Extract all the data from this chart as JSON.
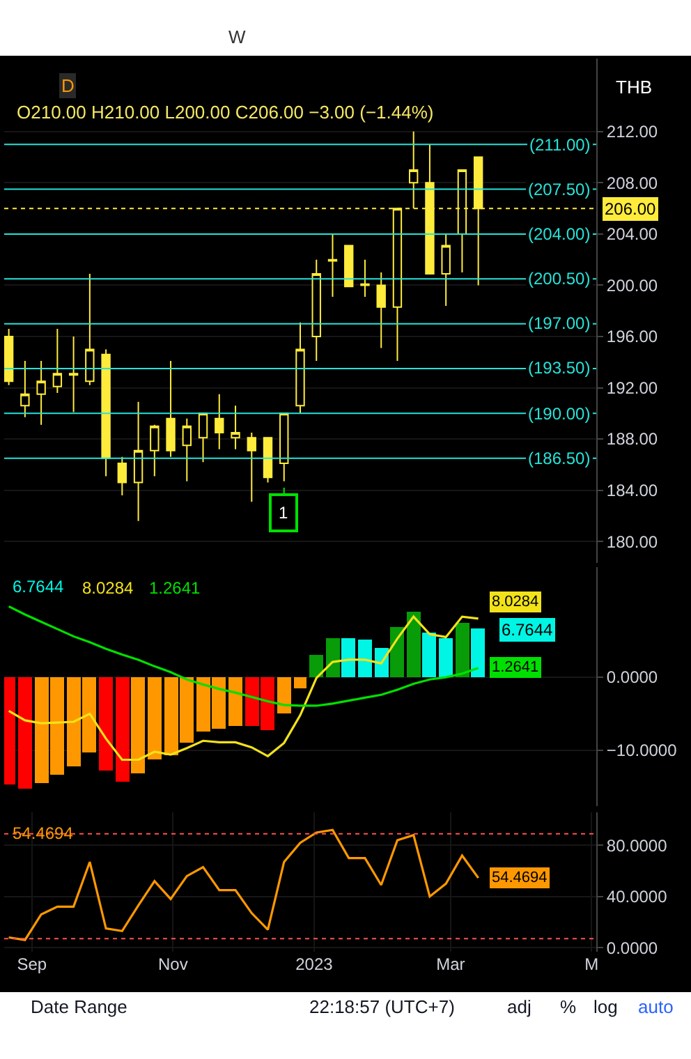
{
  "chart_data": [
    {
      "type": "candlestick",
      "color": "#ffeb3b",
      "x": [
        "2022-08-22",
        "2022-08-29",
        "2022-09-05",
        "2022-09-12",
        "2022-09-19",
        "2022-09-26",
        "2022-10-03",
        "2022-10-10",
        "2022-10-17",
        "2022-10-24",
        "2022-10-31",
        "2022-11-07",
        "2022-11-14",
        "2022-11-21",
        "2022-11-28",
        "2022-12-05",
        "2022-12-12",
        "2022-12-19",
        "2022-12-26",
        "2023-01-02",
        "2023-01-09",
        "2023-01-16",
        "2023-01-23",
        "2023-01-30",
        "2023-02-06",
        "2023-02-13",
        "2023-02-20",
        "2023-02-27",
        "2023-03-06",
        "2023-03-13"
      ],
      "ohlc": [
        [
          196.0,
          196.6,
          192.2,
          192.5
        ],
        [
          190.6,
          194.1,
          189.7,
          191.5
        ],
        [
          191.5,
          194.1,
          189.1,
          192.5
        ],
        [
          192.1,
          196.6,
          191.6,
          193.1
        ],
        [
          193.0,
          196.0,
          190.1,
          193.1
        ],
        [
          192.5,
          200.9,
          192.2,
          195.0
        ],
        [
          194.6,
          195.0,
          185.1,
          186.5
        ],
        [
          186.1,
          186.6,
          183.6,
          184.6
        ],
        [
          184.6,
          190.9,
          181.6,
          187.1
        ],
        [
          187.1,
          189.1,
          185.1,
          189.0
        ],
        [
          189.6,
          194.1,
          186.6,
          187.1
        ],
        [
          187.5,
          189.6,
          184.7,
          189.0
        ],
        [
          188.1,
          190.0,
          186.2,
          190.0
        ],
        [
          189.6,
          191.5,
          187.2,
          188.5
        ],
        [
          188.1,
          190.6,
          187.2,
          188.5
        ],
        [
          188.1,
          188.5,
          183.1,
          187.1
        ],
        [
          188.1,
          188.1,
          184.6,
          185.0
        ],
        [
          186.1,
          190.0,
          184.7,
          190.0
        ],
        [
          190.6,
          197.1,
          190.0,
          195.0
        ],
        [
          196.0,
          202.0,
          194.1,
          200.9
        ],
        [
          201.9,
          204.0,
          199.1,
          202.0
        ],
        [
          203.1,
          203.1,
          199.9,
          199.9
        ],
        [
          200.1,
          202.0,
          199.1,
          200.0
        ],
        [
          200.0,
          201.0,
          195.1,
          198.3
        ],
        [
          198.3,
          206.0,
          194.1,
          206.0
        ],
        [
          208.0,
          212.0,
          206.0,
          209.0
        ],
        [
          208.0,
          211.0,
          200.9,
          200.9
        ],
        [
          200.9,
          204.0,
          198.4,
          203.1
        ],
        [
          204.0,
          209.0,
          201.0,
          209.0
        ],
        [
          210.0,
          210.0,
          200.0,
          206.0
        ]
      ],
      "xlim": [
        "2022-08-20",
        "2023-05-03"
      ],
      "ylim": [
        178.3,
        217.7
      ],
      "yticks": [
        {
          "value": 180,
          "label": "180.00"
        },
        {
          "value": 184,
          "label": "184.00"
        },
        {
          "value": 188,
          "label": "188.00"
        },
        {
          "value": 192,
          "label": "192.00"
        },
        {
          "value": 196,
          "label": "196.00"
        },
        {
          "value": 200,
          "label": "200.00"
        },
        {
          "value": 204,
          "label": "204.00"
        },
        {
          "value": 208,
          "label": "208.00"
        },
        {
          "value": 212,
          "label": "212.00"
        }
      ],
      "ref_lines": [
        {
          "axis": "y",
          "value": 211,
          "label": "(211.00)",
          "color": "#26e3d9"
        },
        {
          "axis": "y",
          "value": 207.5,
          "label": "(207.50)",
          "color": "#26e3d9"
        },
        {
          "axis": "y",
          "value": 204,
          "label": "(204.00)",
          "color": "#26e3d9"
        },
        {
          "axis": "y",
          "value": 200.5,
          "label": "(200.50)",
          "color": "#26e3d9"
        },
        {
          "axis": "y",
          "value": 197,
          "label": "(197.00)",
          "color": "#26e3d9"
        },
        {
          "axis": "y",
          "value": 193.5,
          "label": "(193.50)",
          "color": "#26e3d9"
        },
        {
          "axis": "y",
          "value": 190,
          "label": "(190.00)",
          "color": "#26e3d9"
        },
        {
          "axis": "y",
          "value": 186.5,
          "label": "(186.50)",
          "color": "#26e3d9"
        },
        {
          "axis": "y",
          "value": 206,
          "label": "206.00",
          "color": "#ffeb3b",
          "line_style": "dotted"
        }
      ],
      "annotations": [
        "W",
        "D",
        "O210.00 H210.00 L200.00 C206.00 −3.00 (−1.44%)",
        "THB",
        {
          "text": "1",
          "x": "2022-12-19",
          "y": 184.2
        }
      ],
      "grid": true,
      "tick_labels": "y"
    },
    {
      "type": "bar",
      "legend": "top left",
      "x": [
        "2022-08-22",
        "2022-08-29",
        "2022-09-05",
        "2022-09-12",
        "2022-09-19",
        "2022-09-26",
        "2022-10-03",
        "2022-10-10",
        "2022-10-17",
        "2022-10-24",
        "2022-10-31",
        "2022-11-07",
        "2022-11-14",
        "2022-11-21",
        "2022-11-28",
        "2022-12-05",
        "2022-12-12",
        "2022-12-19",
        "2022-12-26",
        "2023-01-02",
        "2023-01-09",
        "2023-01-16",
        "2023-01-23",
        "2023-01-30",
        "2023-02-06",
        "2023-02-13",
        "2023-02-20",
        "2023-02-27",
        "2023-03-06",
        "2023-03-13"
      ],
      "series": [
        {
          "type": "bar",
          "color": "#00f5e4",
          "colors": [
            "#ff0000",
            "#ff0000",
            "#ff9800",
            "#ff9800",
            "#ff9800",
            "#ff9800",
            "#ff0000",
            "#ff0000",
            "#ff9800",
            "#ff9800",
            "#ff9800",
            "#ff9800",
            "#ff9800",
            "#ff9800",
            "#ff9800",
            "#ff0000",
            "#ff0000",
            "#ff9800",
            "#ff9800",
            "#089c08",
            "#089c08",
            "#00f5e4",
            "#00f5e4",
            "#00f5e4",
            "#089c08",
            "#089c08",
            "#00f5e4",
            "#00f5e4",
            "#089c08",
            "#00f5e4"
          ],
          "values": [
            -14.6,
            -15.2,
            -14.5,
            -13.3,
            -12.2,
            -10.3,
            -12.7,
            -14.3,
            -13.2,
            -11.3,
            -10.6,
            -9.0,
            -7.5,
            -7.0,
            -6.7,
            -6.7,
            -7.3,
            -4.9,
            -1.5,
            3.1,
            5.4,
            5.4,
            5.2,
            4.0,
            6.9,
            9.0,
            6.1,
            5.4,
            7.5,
            6.7644
          ]
        },
        {
          "name": "8.0284",
          "type": "line",
          "color": "#f2e21a",
          "values": [
            -4.6,
            -5.9,
            -6.3,
            -6.2,
            -6.1,
            -5.0,
            -8.4,
            -11.3,
            -11.3,
            -10.2,
            -10.6,
            -9.7,
            -8.7,
            -8.9,
            -8.9,
            -9.6,
            -10.8,
            -9.0,
            -5.2,
            -0.1,
            2.1,
            2.4,
            2.4,
            1.9,
            5.3,
            8.3,
            5.9,
            5.5,
            8.3,
            8.0284
          ],
          "value_labels": [
            null,
            null,
            null,
            null,
            null,
            null,
            null,
            null,
            null,
            null,
            null,
            null,
            null,
            null,
            null,
            null,
            null,
            null,
            null,
            null,
            null,
            null,
            null,
            null,
            null,
            null,
            null,
            null,
            null,
            "8.0284"
          ]
        },
        {
          "name": "1.2641",
          "type": "line",
          "color": "#00e000",
          "values": [
            9.7,
            8.6,
            7.6,
            6.6,
            5.6,
            4.8,
            3.9,
            3.1,
            2.4,
            1.5,
            0.7,
            -0.3,
            -1.0,
            -1.6,
            -2.1,
            -2.7,
            -3.3,
            -3.8,
            -3.9,
            -3.9,
            -3.6,
            -3.2,
            -2.8,
            -2.4,
            -1.7,
            -0.9,
            -0.3,
            0.0,
            0.5,
            1.2641
          ],
          "value_labels": [
            null,
            null,
            null,
            null,
            null,
            null,
            null,
            null,
            null,
            null,
            null,
            null,
            null,
            null,
            null,
            null,
            null,
            null,
            null,
            null,
            null,
            null,
            null,
            null,
            null,
            null,
            null,
            null,
            null,
            "1.2641"
          ]
        }
      ],
      "xlim": [
        "2022-08-20",
        "2023-05-03"
      ],
      "ylim": [
        -17.6,
        15.1
      ],
      "yticks": [
        {
          "value": 0,
          "label": "0.0000"
        },
        {
          "value": -10,
          "label": "−10.0000"
        }
      ],
      "annotations": [
        "6.7644",
        "6.7644"
      ],
      "grid": true,
      "tick_labels": "y"
    },
    {
      "type": "line",
      "legend": "top left",
      "x": [
        "2022-08-22",
        "2022-08-29",
        "2022-09-05",
        "2022-09-12",
        "2022-09-19",
        "2022-09-26",
        "2022-10-03",
        "2022-10-10",
        "2022-10-17",
        "2022-10-24",
        "2022-10-31",
        "2022-11-07",
        "2022-11-14",
        "2022-11-21",
        "2022-11-28",
        "2022-12-05",
        "2022-12-12",
        "2022-12-19",
        "2022-12-26",
        "2023-01-02",
        "2023-01-09",
        "2023-01-16",
        "2023-01-23",
        "2023-01-30",
        "2023-02-06",
        "2023-02-13",
        "2023-02-20",
        "2023-02-27",
        "2023-03-06",
        "2023-03-13"
      ],
      "series": [
        {
          "name": "54.4694",
          "color": "#ff9800",
          "values": [
            8,
            6,
            26,
            32,
            32,
            67,
            15,
            13,
            33,
            52,
            38,
            56,
            63,
            45,
            45,
            27,
            14,
            67,
            82,
            90,
            92,
            70,
            70,
            49,
            84,
            88,
            40,
            50,
            72,
            54.4694
          ],
          "value_labels": [
            null,
            null,
            null,
            null,
            null,
            null,
            null,
            null,
            null,
            null,
            null,
            null,
            null,
            null,
            null,
            null,
            null,
            null,
            null,
            null,
            null,
            null,
            null,
            null,
            null,
            null,
            null,
            null,
            null,
            "54.4694"
          ]
        }
      ],
      "ref_lines": [
        {
          "axis": "y",
          "value": 89,
          "color": "#ff5252",
          "line_style": "dotted"
        },
        {
          "axis": "y",
          "value": 7,
          "color": "#ff5252",
          "line_style": "dotted"
        }
      ],
      "xlim": [
        "2022-08-20",
        "2023-05-03"
      ],
      "ylim": [
        -3.3,
        105.8
      ],
      "xticks": [
        {
          "value": "2022-09-01",
          "label": "Sep"
        },
        {
          "value": "2022-11-01",
          "label": "Nov"
        },
        {
          "value": "2023-01-01",
          "label": "2023"
        },
        {
          "value": "2023-03-01",
          "label": "Mar"
        },
        {
          "value": "2023-05-01",
          "label": "M"
        }
      ],
      "yticks": [
        {
          "value": 0,
          "label": "0.0000"
        },
        {
          "value": 40,
          "label": "40.0000"
        },
        {
          "value": 80,
          "label": "80.0000"
        }
      ],
      "annotations": [
        "Date Range",
        "22:18:57 (UTC+7)",
        "adj",
        "%",
        "log",
        "auto"
      ],
      "grid": true
    }
  ]
}
